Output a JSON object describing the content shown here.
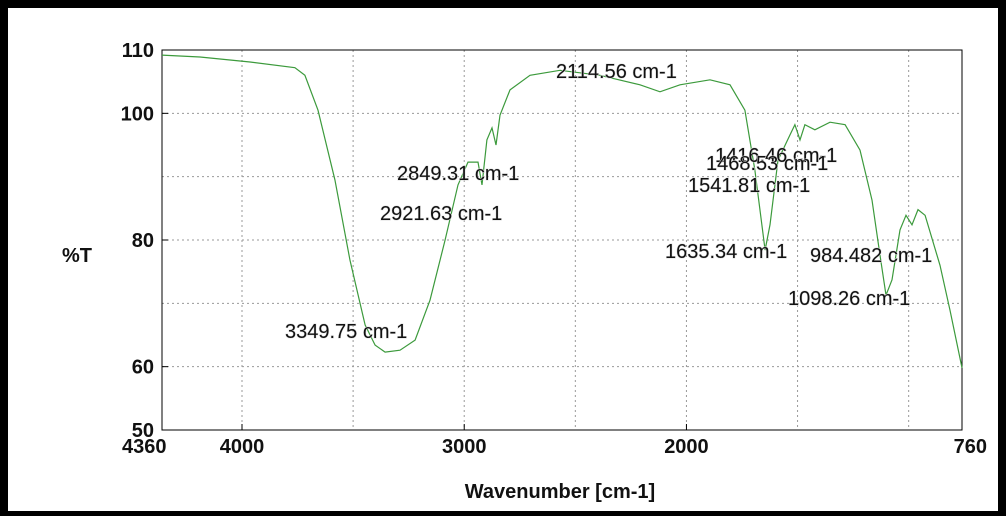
{
  "chart_data": {
    "type": "line",
    "x_label": "Wavenumber [cm-1]",
    "y_label": "%T",
    "xlim": [
      4360,
      760
    ],
    "ylim": [
      50,
      110
    ],
    "xticks": [
      4360,
      4000,
      3000,
      2000,
      760
    ],
    "yticks": [
      50,
      60,
      80,
      100,
      110
    ],
    "xgrid": [
      4000,
      3500,
      3000,
      2500,
      2000,
      1500,
      1000
    ],
    "ygrid": [
      60,
      70,
      80,
      90,
      100
    ],
    "grid": true,
    "x": [
      4360,
      4189,
      3964,
      3762,
      3717,
      3658,
      3582,
      3514,
      3446,
      3401,
      3356,
      3289,
      3221,
      3154,
      3086,
      3028,
      2983,
      2938,
      2920,
      2898,
      2875,
      2857,
      2839,
      2794,
      2704,
      2569,
      2389,
      2209,
      2119,
      2029,
      1894,
      1804,
      1737,
      1692,
      1646,
      1624,
      1588,
      1534,
      1512,
      1489,
      1467,
      1422,
      1354,
      1286,
      1219,
      1165,
      1129,
      1102,
      1075,
      1039,
      1012,
      985,
      958,
      926,
      859,
      814,
      760
    ],
    "series": [
      {
        "name": "spectrum",
        "color": "#3c9a3c",
        "values": [
          109.2,
          108.9,
          108.1,
          107.2,
          106,
          100.5,
          89.5,
          76.8,
          66.6,
          63.4,
          62.3,
          62.6,
          64.2,
          70.5,
          80,
          88.7,
          92.3,
          92.3,
          88.7,
          95.8,
          97.7,
          95,
          99.7,
          103.7,
          106,
          106.8,
          106,
          104.5,
          103.4,
          104.5,
          105.3,
          104.5,
          100.5,
          91,
          78.4,
          82.4,
          92.6,
          96.6,
          98.2,
          95.8,
          98.2,
          97.4,
          98.6,
          98.2,
          94.2,
          86.3,
          77.6,
          71.3,
          73.7,
          81.6,
          83.9,
          82.4,
          84.8,
          83.9,
          76,
          68.9,
          59.8
        ]
      }
    ],
    "annotations": [
      "2114.56 cm-1",
      "2849.31 cm-1",
      "2921.63 cm-1",
      "3349.75 cm-1",
      "1416.46 cm-1",
      "1468.53 cm-1",
      "1541.81 cm-1",
      "1635.34 cm-1",
      "984.482 cm-1",
      "1098.26 cm-1"
    ]
  }
}
